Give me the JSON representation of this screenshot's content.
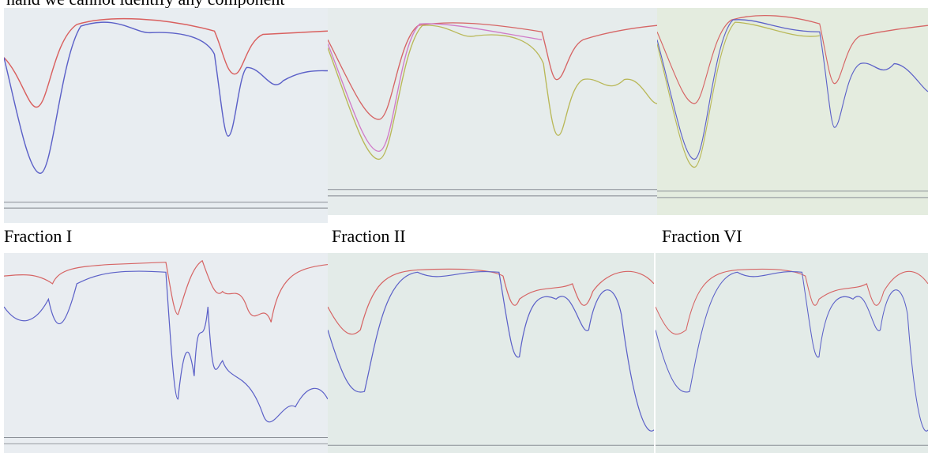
{
  "header": {
    "text": "hand we cannot identify any component"
  },
  "captions": [
    "Fraction I",
    "Fraction II",
    "Fraction VI"
  ]
}
